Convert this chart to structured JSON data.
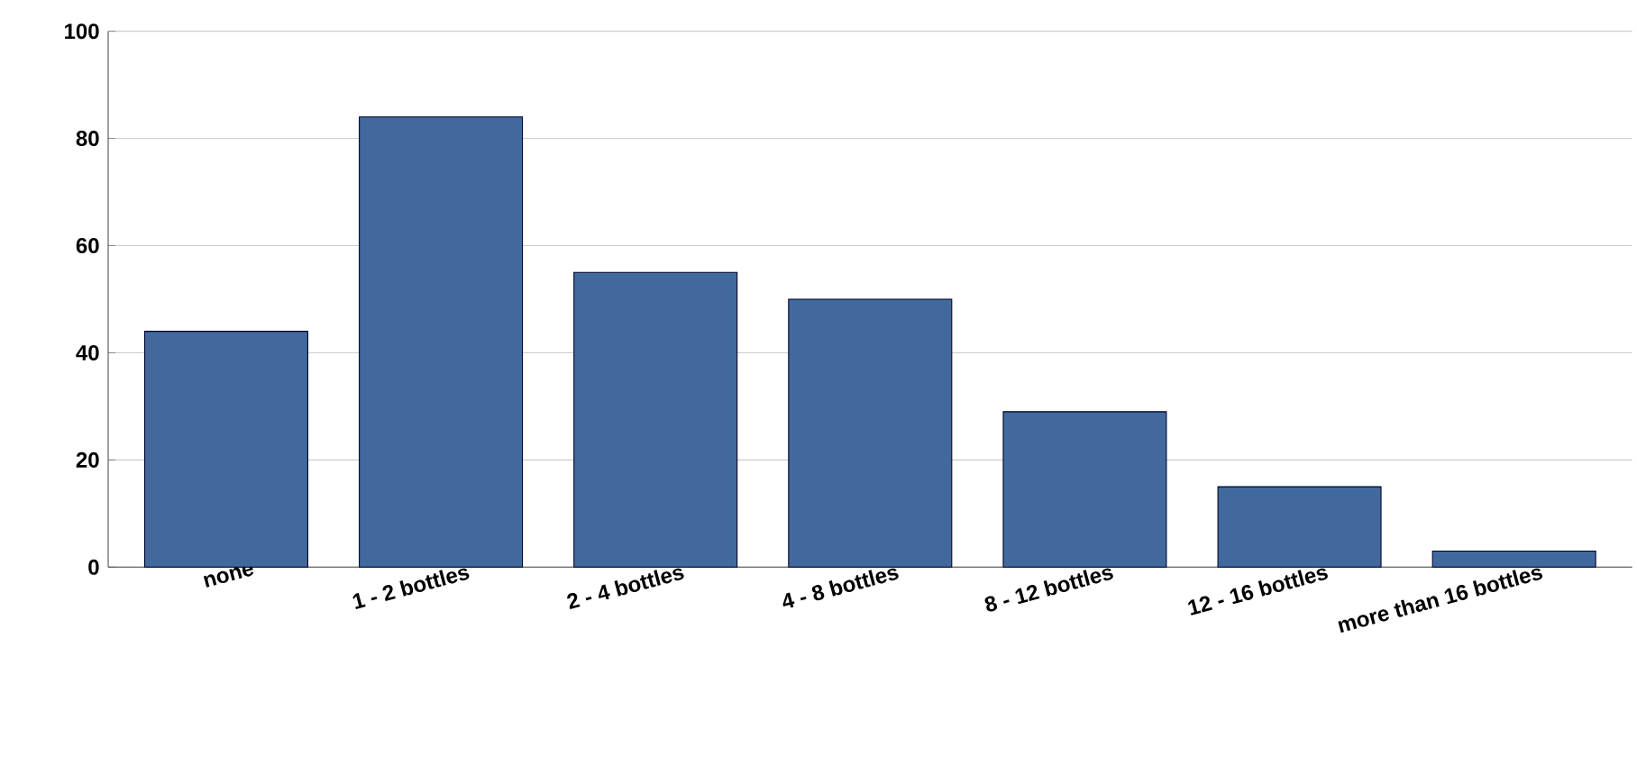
{
  "chart_data": {
    "type": "bar",
    "categories": [
      "none",
      "1 - 2 bottles",
      "2 - 4 bottles",
      "4 - 8 bottles",
      "8 - 12 bottles",
      "12 - 16 bottles",
      "more than 16 bottles"
    ],
    "values": [
      44,
      84,
      55,
      50,
      29,
      15,
      3
    ],
    "color": "#41699d",
    "ylim": [
      0,
      100
    ],
    "yticks": [
      0,
      20,
      40,
      60,
      80,
      100
    ],
    "grid": "y"
  }
}
